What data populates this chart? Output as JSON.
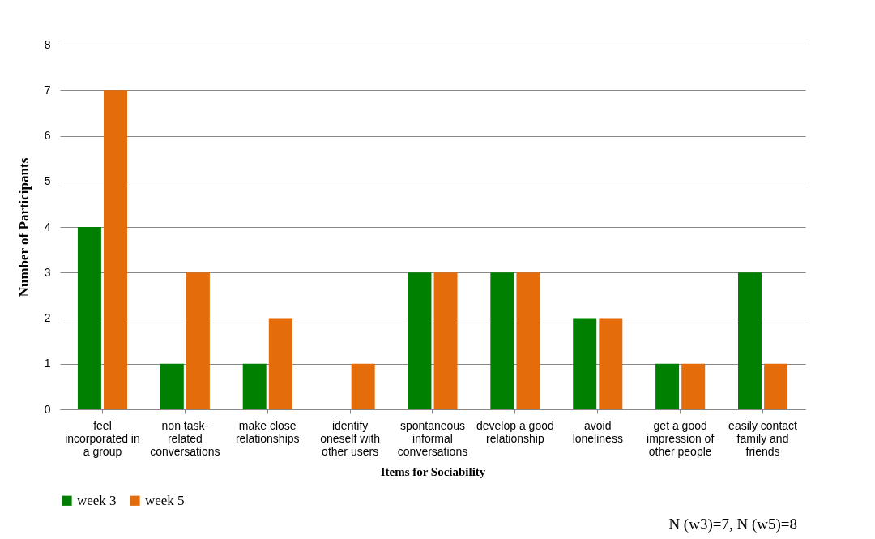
{
  "chart_data": {
    "type": "bar",
    "xlabel": "Items for Sociability",
    "ylabel": "Number of Participants",
    "categories": [
      "feel incorporated in a group",
      "non task-related conversations",
      "make close relationships",
      "identify oneself with other users",
      "spontaneous informal conversations",
      "develop a good relationship",
      "avoid loneliness",
      "get a good impression of other people",
      "easily contact family and friends"
    ],
    "series": [
      {
        "name": "week 3",
        "color": "#008000",
        "values": [
          4,
          1,
          1,
          0,
          3,
          3,
          2,
          1,
          3
        ]
      },
      {
        "name": "week 5",
        "color": "#e46c0a",
        "values": [
          7,
          3,
          2,
          1,
          3,
          3,
          2,
          1,
          1
        ]
      }
    ],
    "ylim": [
      0,
      8
    ],
    "yticks": [
      0,
      1,
      2,
      3,
      4,
      5,
      6,
      7,
      8
    ],
    "grid": "y",
    "legend": "bottom",
    "annotations": [
      "N (w3)=7, N (w5)=8"
    ]
  }
}
